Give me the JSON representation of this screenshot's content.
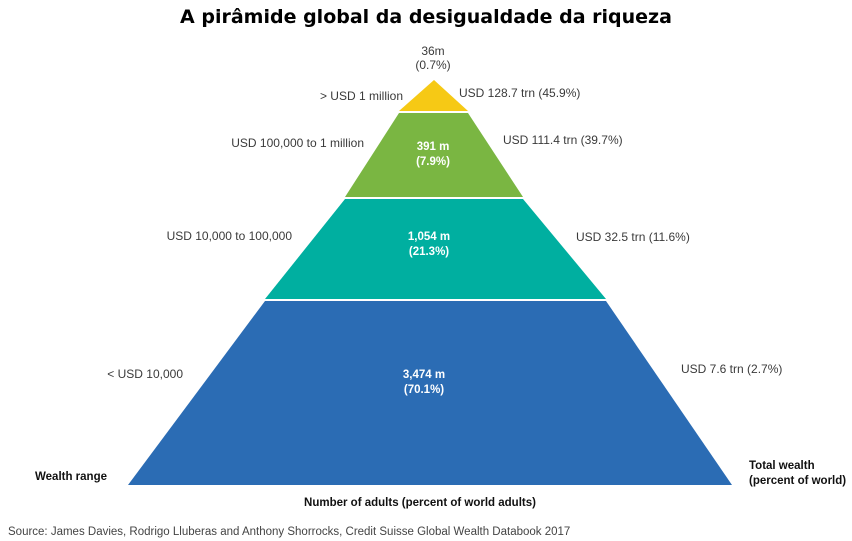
{
  "title": "A pirâmide global da desigualdade da riqueza",
  "colors": {
    "tier_top": "#F6C915",
    "tier_upper": "#7AB642",
    "tier_middle": "#00AFA0",
    "tier_base": "#2B6CB4"
  },
  "tiers": {
    "top": {
      "range": ">  USD 1 million",
      "adults": "36m",
      "adults_pct": "(0.7%)",
      "wealth": "USD 128.7 trn (45.9%)"
    },
    "upper": {
      "range": "USD 100,000  to 1 million",
      "adults": "391 m",
      "adults_pct": "(7.9%)",
      "wealth": "USD 111.4 trn (39.7%)"
    },
    "middle": {
      "range": "USD 10,000  to 100,000",
      "adults": "1,054 m",
      "adults_pct": "(21.3%)",
      "wealth": "USD 32.5 trn (11.6%)"
    },
    "base": {
      "range": "<  USD 10,000",
      "adults": "3,474 m",
      "adults_pct": "(70.1%)",
      "wealth": "USD 7.6 trn (2.7%)"
    }
  },
  "axes": {
    "left": "Wealth range",
    "bottom": "Number of adults (percent of world adults)",
    "right_line1": "Total wealth",
    "right_line2": "(percent of world)"
  },
  "source": "Source: James Davies, Rodrigo Lluberas and Anthony Shorrocks, Credit Suisse Global Wealth Databook 2017"
}
